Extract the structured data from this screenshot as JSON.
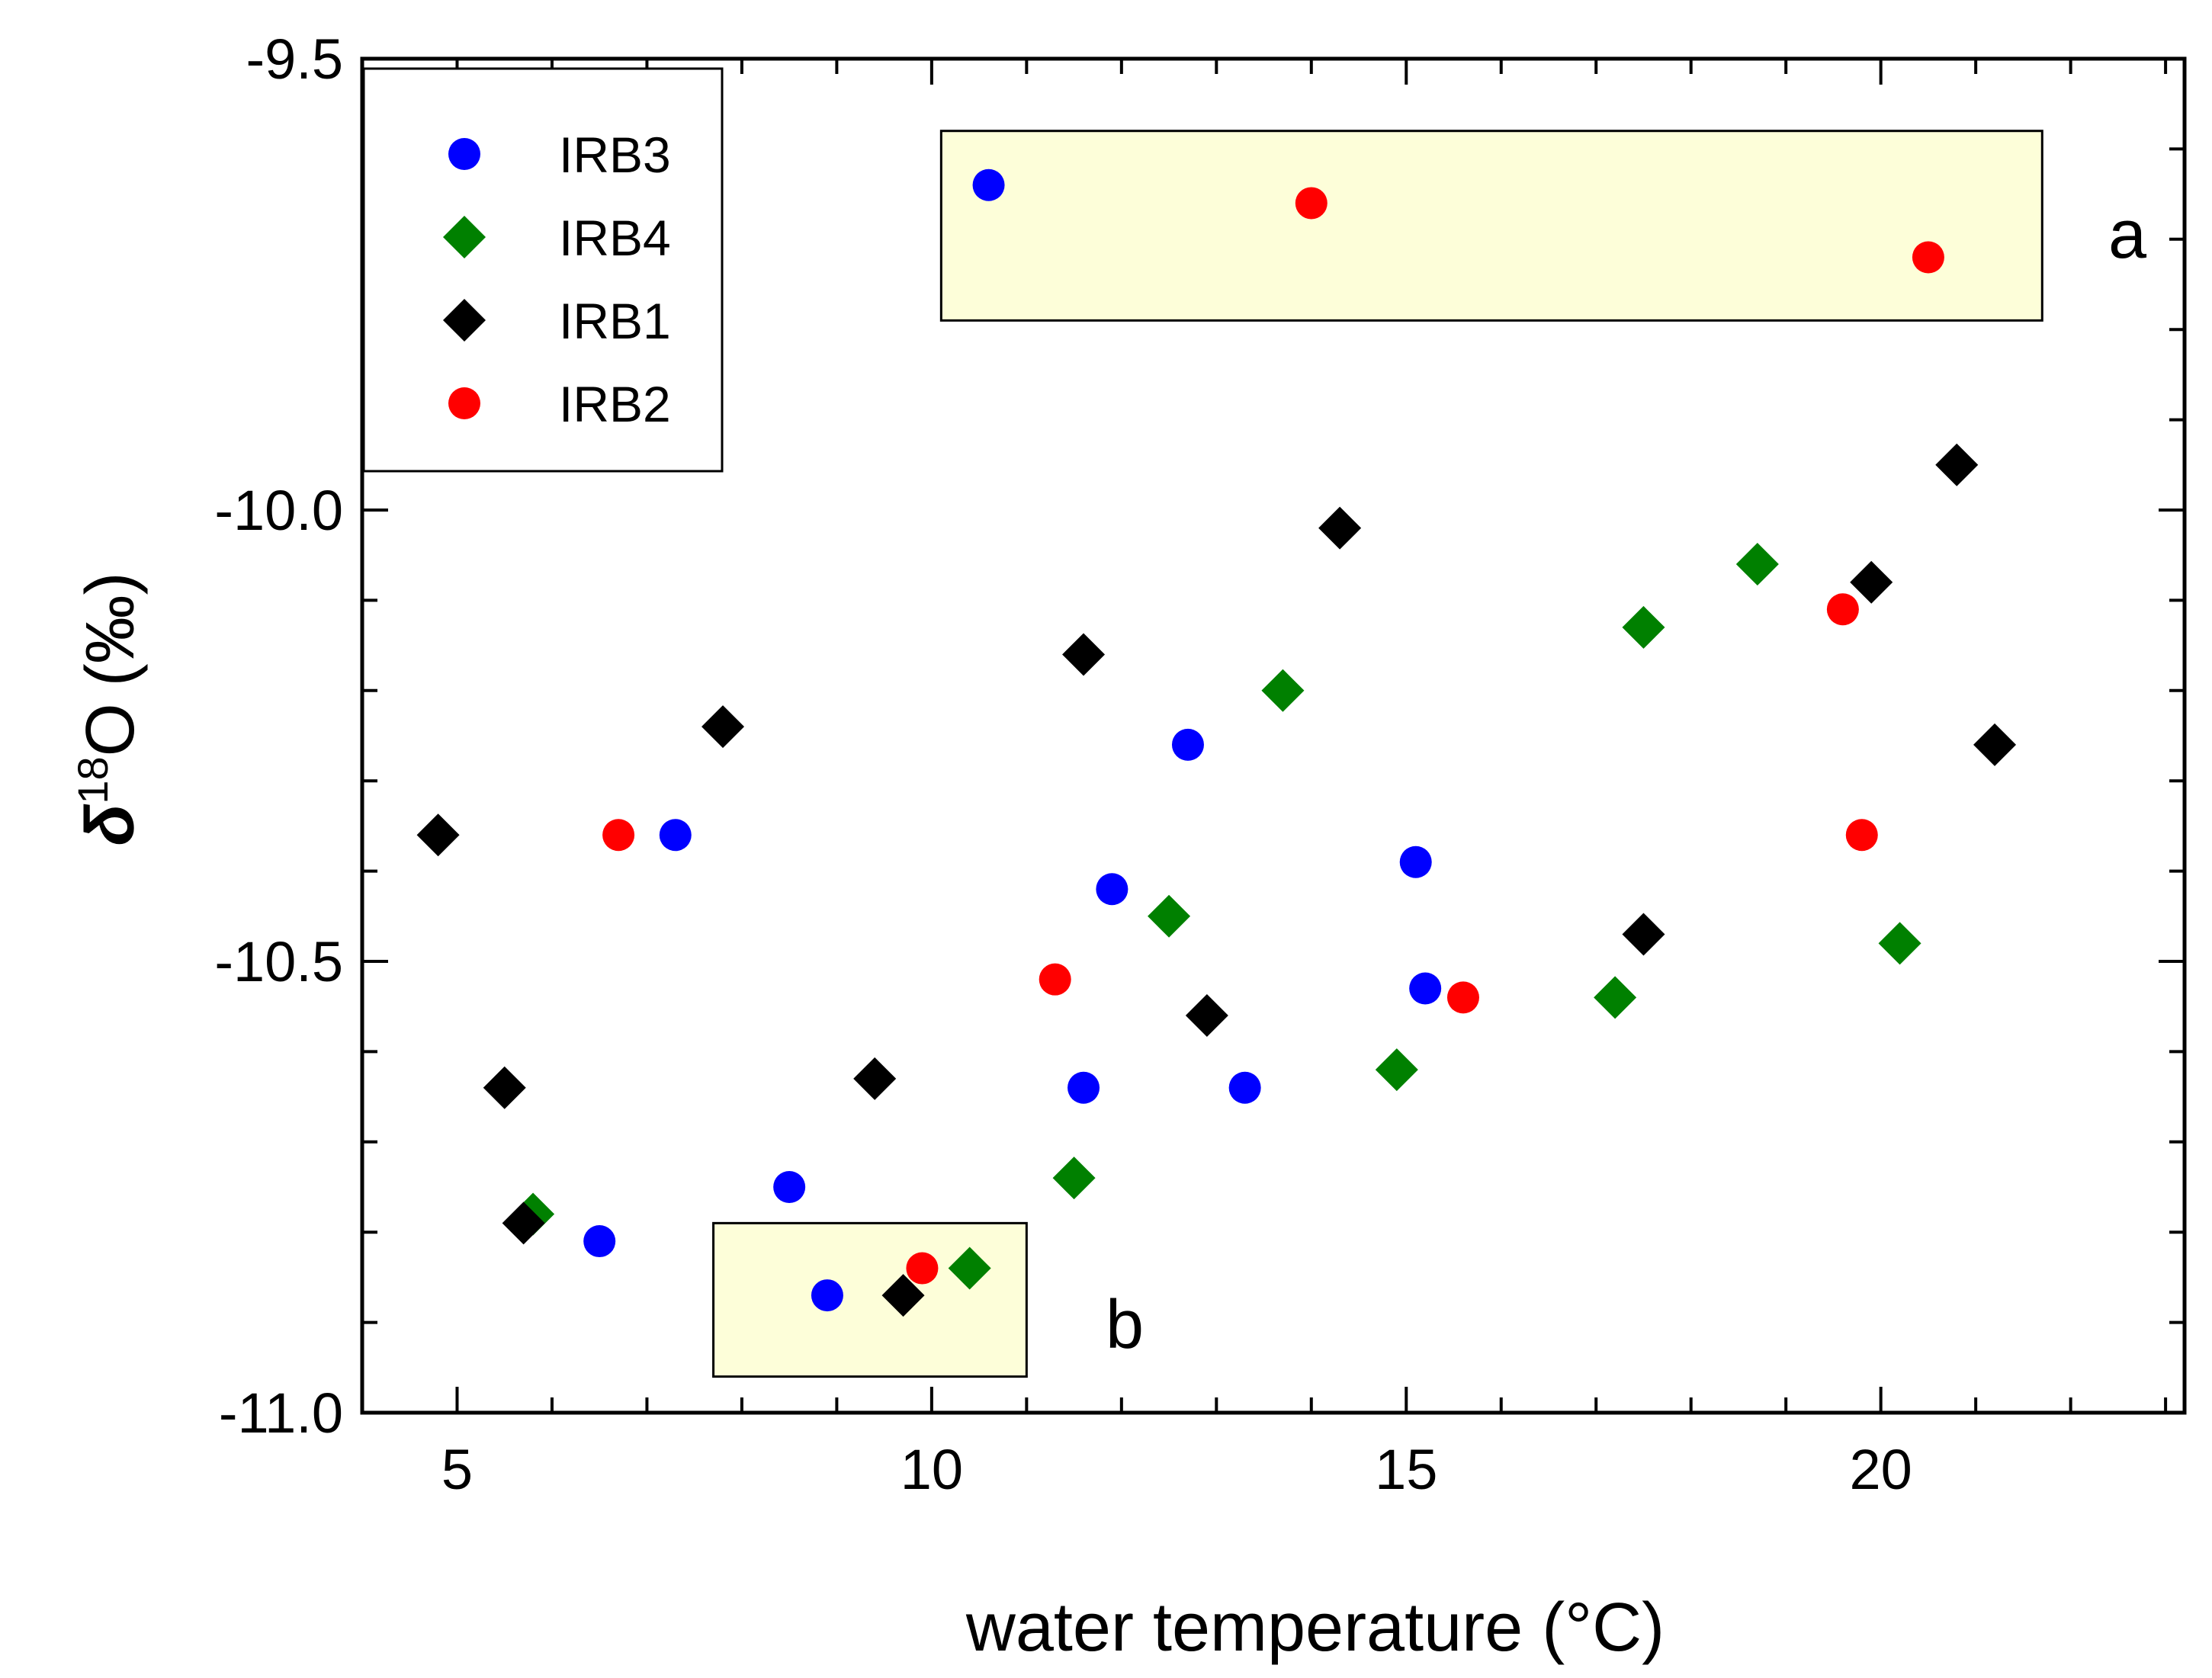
{
  "chart_data": {
    "type": "scatter",
    "xlabel": "water temperature (°C)",
    "ylabel": {
      "symbol": "δ",
      "superscript": "18",
      "element": "O",
      "unit": "(‰)"
    },
    "xlim": [
      4,
      23.2
    ],
    "ylim": [
      -11.0,
      -9.5
    ],
    "x_ticks": [
      {
        "value": 5,
        "label": "5"
      },
      {
        "value": 10,
        "label": "10"
      },
      {
        "value": 15,
        "label": "15"
      },
      {
        "value": 20,
        "label": "20"
      }
    ],
    "y_ticks": [
      {
        "value": -9.5,
        "label": "-9.5"
      },
      {
        "value": -10.0,
        "label": "-10.0"
      },
      {
        "value": -10.5,
        "label": "-10.5"
      },
      {
        "value": -11.0,
        "label": "-11.0"
      }
    ],
    "x_minor_step": 1,
    "y_minor_step": 0.1,
    "legend_position": "top-left",
    "series": [
      {
        "name": "IRB3",
        "marker": "circle",
        "color": "#0000ff",
        "points": [
          {
            "x": 10.6,
            "y": -9.64
          },
          {
            "x": 7.3,
            "y": -10.36
          },
          {
            "x": 8.5,
            "y": -10.75
          },
          {
            "x": 6.5,
            "y": -10.81
          },
          {
            "x": 8.9,
            "y": -10.87
          },
          {
            "x": 11.6,
            "y": -10.64
          },
          {
            "x": 11.9,
            "y": -10.42
          },
          {
            "x": 12.7,
            "y": -10.26
          },
          {
            "x": 13.3,
            "y": -10.64
          },
          {
            "x": 15.1,
            "y": -10.39
          },
          {
            "x": 15.2,
            "y": -10.53
          }
        ]
      },
      {
        "name": "IRB4",
        "marker": "diamond",
        "color": "#008000",
        "points": [
          {
            "x": 5.8,
            "y": -10.78
          },
          {
            "x": 10.4,
            "y": -10.84
          },
          {
            "x": 11.5,
            "y": -10.74
          },
          {
            "x": 12.5,
            "y": -10.45
          },
          {
            "x": 13.7,
            "y": -10.2
          },
          {
            "x": 14.9,
            "y": -10.62
          },
          {
            "x": 17.2,
            "y": -10.54
          },
          {
            "x": 17.5,
            "y": -10.13
          },
          {
            "x": 18.7,
            "y": -10.06
          },
          {
            "x": 20.2,
            "y": -10.48
          }
        ]
      },
      {
        "name": "IRB1",
        "marker": "diamond",
        "color": "#000000",
        "points": [
          {
            "x": 4.8,
            "y": -10.36
          },
          {
            "x": 5.5,
            "y": -10.64
          },
          {
            "x": 5.7,
            "y": -10.79
          },
          {
            "x": 7.8,
            "y": -10.24
          },
          {
            "x": 9.4,
            "y": -10.63
          },
          {
            "x": 9.7,
            "y": -10.87
          },
          {
            "x": 11.6,
            "y": -10.16
          },
          {
            "x": 12.9,
            "y": -10.56
          },
          {
            "x": 14.3,
            "y": -10.02
          },
          {
            "x": 17.5,
            "y": -10.47
          },
          {
            "x": 19.9,
            "y": -10.08
          },
          {
            "x": 20.8,
            "y": -9.95
          },
          {
            "x": 21.2,
            "y": -10.26
          }
        ]
      },
      {
        "name": "IRB2",
        "marker": "circle",
        "color": "#ff0000",
        "points": [
          {
            "x": 14.0,
            "y": -9.66
          },
          {
            "x": 20.5,
            "y": -9.72
          },
          {
            "x": 6.7,
            "y": -10.36
          },
          {
            "x": 9.9,
            "y": -10.84
          },
          {
            "x": 11.3,
            "y": -10.52
          },
          {
            "x": 15.6,
            "y": -10.54
          },
          {
            "x": 19.6,
            "y": -10.11
          },
          {
            "x": 19.8,
            "y": -10.36
          }
        ]
      }
    ],
    "regions": [
      {
        "label": "a",
        "x_range": [
          10.1,
          21.7
        ],
        "y_range": [
          -9.79,
          -9.58
        ],
        "fill": "#fdfed9"
      },
      {
        "label": "b",
        "x_range": [
          7.7,
          11.0
        ],
        "y_range": [
          -10.96,
          -10.79
        ],
        "fill": "#fdfed9"
      }
    ]
  }
}
